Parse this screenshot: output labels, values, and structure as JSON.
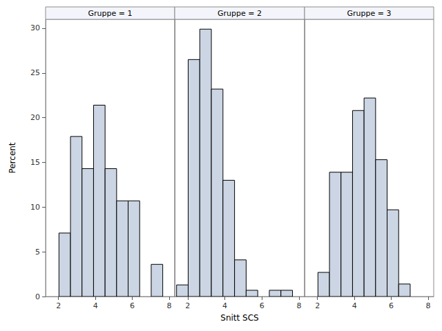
{
  "chart_data": {
    "type": "histogram",
    "xlabel": "Snitt SCS",
    "ylabel": "Percent",
    "bins": [
      1.4,
      2.025,
      2.65,
      3.275,
      3.9,
      4.525,
      5.15,
      5.775,
      6.4,
      7.025,
      7.65
    ],
    "series": [
      {
        "name": "Gruppe = 1",
        "color": "#cbd5e3",
        "values": [
          0,
          7.1,
          17.9,
          14.3,
          21.4,
          14.3,
          10.7,
          10.7,
          0,
          3.6
        ]
      },
      {
        "name": "Gruppe = 2",
        "color": "#cbd5e3",
        "values": [
          1.3,
          26.5,
          29.9,
          23.2,
          13.0,
          4.1,
          0.7,
          0,
          0.7,
          0.7
        ]
      },
      {
        "name": "Gruppe = 3",
        "color": "#cbd5e3",
        "values": [
          0,
          2.7,
          13.9,
          13.9,
          20.8,
          22.2,
          15.3,
          9.7,
          1.4,
          0
        ]
      }
    ],
    "xlim": [
      1.3,
      8.3
    ],
    "xticks": [
      2,
      4,
      6,
      8
    ],
    "ylim": [
      0,
      31
    ],
    "yticks": [
      0,
      5,
      10,
      15,
      20,
      25,
      30
    ],
    "grid": false
  }
}
